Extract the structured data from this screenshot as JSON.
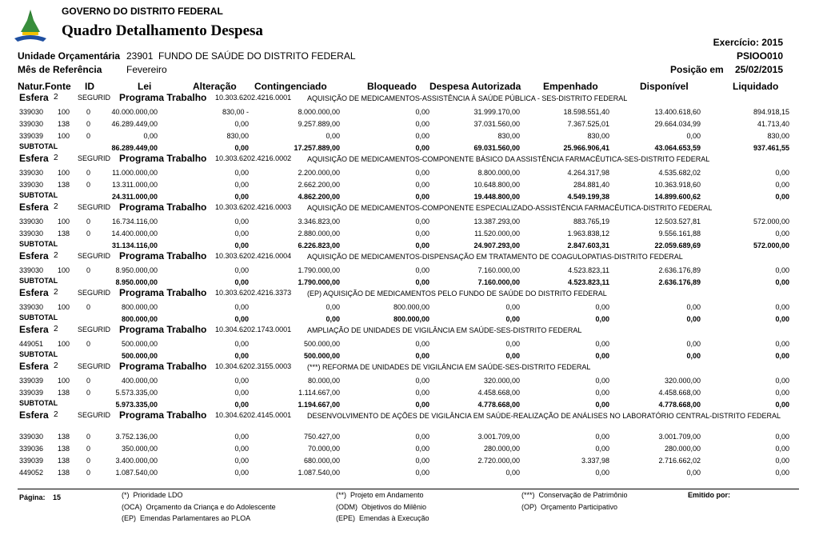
{
  "header": {
    "government": "GOVERNO DO DISTRITO FEDERAL",
    "title": "Quadro Detalhamento Despesa",
    "exercise": "Exercício: 2015",
    "report_code": "PSIOO010",
    "unit_label": "Unidade Orçamentária",
    "unit_value": "23901  FUNDO DE SAÚDE DO DISTRITO FEDERAL",
    "month_label": "Mês de Referência",
    "month_value": "Fevereiro",
    "position_label": "Posição em",
    "position_value": "25/02/2015"
  },
  "columns": [
    "Natur.",
    "Fonte",
    "ID",
    "Lei",
    "Alteração",
    "Contingenciado",
    "Bloqueado",
    "Despesa Autorizada",
    "Empenhado",
    "Disponível",
    "Liquidado"
  ],
  "labels": {
    "esfera": "Esfera",
    "programa": "Programa Trabalho",
    "subtotal": "SUBTOTAL"
  },
  "sections": [
    {
      "esfera": "2",
      "seg": "SEGURID",
      "code": "10.303.6202.4216.0001",
      "description": "AQUISIÇÃO DE MEDICAMENTOS-ASSISTÊNCIA À SAÚDE PÚBLICA - SES-DISTRITO FEDERAL",
      "rows": [
        [
          "339030",
          "100",
          "0",
          "40.000.000,00",
          "830,00 -",
          "8.000.000,00",
          "0,00",
          "31.999.170,00",
          "18.598.551,40",
          "13.400.618,60",
          "894.918,15"
        ],
        [
          "339030",
          "138",
          "0",
          "46.289.449,00",
          "0,00",
          "9.257.889,00",
          "0,00",
          "37.031.560,00",
          "7.367.525,01",
          "29.664.034,99",
          "41.713,40"
        ],
        [
          "339039",
          "100",
          "0",
          "0,00",
          "830,00",
          "0,00",
          "0,00",
          "830,00",
          "830,00",
          "0,00",
          "830,00"
        ]
      ],
      "subtotal": [
        "86.289.449,00",
        "0,00",
        "17.257.889,00",
        "0,00",
        "69.031.560,00",
        "25.966.906,41",
        "43.064.653,59",
        "937.461,55"
      ]
    },
    {
      "esfera": "2",
      "seg": "SEGURID",
      "code": "10.303.6202.4216.0002",
      "description": "AQUISIÇÃO DE MEDICAMENTOS-COMPONENTE BÁSICO DA ASSISTÊNCIA FARMACÊUTICA-SES-DISTRITO FEDERAL",
      "rows": [
        [
          "339030",
          "100",
          "0",
          "11.000.000,00",
          "0,00",
          "2.200.000,00",
          "0,00",
          "8.800.000,00",
          "4.264.317,98",
          "4.535.682,02",
          "0,00"
        ],
        [
          "339030",
          "138",
          "0",
          "13.311.000,00",
          "0,00",
          "2.662.200,00",
          "0,00",
          "10.648.800,00",
          "284.881,40",
          "10.363.918,60",
          "0,00"
        ]
      ],
      "subtotal": [
        "24.311.000,00",
        "0,00",
        "4.862.200,00",
        "0,00",
        "19.448.800,00",
        "4.549.199,38",
        "14.899.600,62",
        "0,00"
      ]
    },
    {
      "esfera": "2",
      "seg": "SEGURID",
      "code": "10.303.6202.4216.0003",
      "description": "AQUISIÇÃO DE MEDICAMENTOS-COMPONENTE ESPECIALIZADO-ASSISTÊNCIA FARMACÊUTICA-DISTRITO FEDERAL",
      "rows": [
        [
          "339030",
          "100",
          "0",
          "16.734.116,00",
          "0,00",
          "3.346.823,00",
          "0,00",
          "13.387.293,00",
          "883.765,19",
          "12.503.527,81",
          "572.000,00"
        ],
        [
          "339030",
          "138",
          "0",
          "14.400.000,00",
          "0,00",
          "2.880.000,00",
          "0,00",
          "11.520.000,00",
          "1.963.838,12",
          "9.556.161,88",
          "0,00"
        ]
      ],
      "subtotal": [
        "31.134.116,00",
        "0,00",
        "6.226.823,00",
        "0,00",
        "24.907.293,00",
        "2.847.603,31",
        "22.059.689,69",
        "572.000,00"
      ]
    },
    {
      "esfera": "2",
      "seg": "SEGURID",
      "code": "10.303.6202.4216.0004",
      "description": "AQUISIÇÃO DE MEDICAMENTOS-DISPENSAÇÃO EM TRATAMENTO DE COAGULOPATIAS-DISTRITO FEDERAL",
      "rows": [
        [
          "339030",
          "100",
          "0",
          "8.950.000,00",
          "0,00",
          "1.790.000,00",
          "0,00",
          "7.160.000,00",
          "4.523.823,11",
          "2.636.176,89",
          "0,00"
        ]
      ],
      "subtotal": [
        "8.950.000,00",
        "0,00",
        "1.790.000,00",
        "0,00",
        "7.160.000,00",
        "4.523.823,11",
        "2.636.176,89",
        "0,00"
      ]
    },
    {
      "esfera": "2",
      "seg": "SEGURID",
      "code": "10.303.6202.4216.3373",
      "description": "(EP) AQUISIÇÃO DE MEDICAMENTOS PELO FUNDO DE SAÚDE DO DISTRITO FEDERAL",
      "rows": [
        [
          "339030",
          "100",
          "0",
          "800.000,00",
          "0,00",
          "0,00",
          "800.000,00",
          "0,00",
          "0,00",
          "0,00",
          "0,00"
        ]
      ],
      "subtotal": [
        "800.000,00",
        "0,00",
        "0,00",
        "800.000,00",
        "0,00",
        "0,00",
        "0,00",
        "0,00"
      ]
    },
    {
      "esfera": "2",
      "seg": "SEGURID",
      "code": "10.304.6202.1743.0001",
      "description": "AMPLIAÇÃO DE UNIDADES DE VIGILÂNCIA EM SAÚDE-SES-DISTRITO FEDERAL",
      "rows": [
        [
          "449051",
          "100",
          "0",
          "500.000,00",
          "0,00",
          "500.000,00",
          "0,00",
          "0,00",
          "0,00",
          "0,00",
          "0,00"
        ]
      ],
      "subtotal": [
        "500.000,00",
        "0,00",
        "500.000,00",
        "0,00",
        "0,00",
        "0,00",
        "0,00",
        "0,00"
      ]
    },
    {
      "esfera": "2",
      "seg": "SEGURID",
      "code": "10.304.6202.3155.0003",
      "description": "(***) REFORMA DE UNIDADES DE VIGILÂNCIA EM SAÚDE-SES-DISTRITO FEDERAL",
      "rows": [
        [
          "339039",
          "100",
          "0",
          "400.000,00",
          "0,00",
          "80.000,00",
          "0,00",
          "320.000,00",
          "0,00",
          "320.000,00",
          "0,00"
        ],
        [
          "339039",
          "138",
          "0",
          "5.573.335,00",
          "0,00",
          "1.114.667,00",
          "0,00",
          "4.458.668,00",
          "0,00",
          "4.458.668,00",
          "0,00"
        ]
      ],
      "subtotal": [
        "5.973.335,00",
        "0,00",
        "1.194.667,00",
        "0,00",
        "4.778.668,00",
        "0,00",
        "4.778.668,00",
        "0,00"
      ]
    },
    {
      "esfera": "2",
      "seg": "SEGURID",
      "code": "10.304.6202.4145.0001",
      "description": "DESENVOLVIMENTO DE AÇÕES DE VIGILÂNCIA EM SAÚDE-REALIZAÇÃO DE ANÁLISES NO LABORATÓRIO CENTRAL-DISTRITO FEDERAL",
      "rows": [
        [
          "339030",
          "138",
          "0",
          "3.752.136,00",
          "0,00",
          "750.427,00",
          "0,00",
          "3.001.709,00",
          "0,00",
          "3.001.709,00",
          "0,00"
        ],
        [
          "339036",
          "138",
          "0",
          "350.000,00",
          "0,00",
          "70.000,00",
          "0,00",
          "280.000,00",
          "0,00",
          "280.000,00",
          "0,00"
        ],
        [
          "339039",
          "138",
          "0",
          "3.400.000,00",
          "0,00",
          "680.000,00",
          "0,00",
          "2.720.000,00",
          "3.337,98",
          "2.716.662,02",
          "0,00"
        ],
        [
          "449052",
          "138",
          "0",
          "1.087.540,00",
          "0,00",
          "1.087.540,00",
          "0,00",
          "0,00",
          "0,00",
          "0,00",
          "0,00"
        ]
      ]
    }
  ],
  "footer": {
    "page_label": "Página:",
    "page_value": "15",
    "issued_by": "Emitido por:",
    "legend": [
      [
        "(*)  Prioridade LDO",
        "(**)  Projeto em Andamento",
        "(***)  Conservação de Patrimônio"
      ],
      [
        "(OCA)  Orçamento da Criança e do Adolescente",
        "(ODM)  Objetivos do Milênio",
        "(OP)  Orçamento Participativo"
      ],
      [
        "(EP)  Emendas Parlamentares ao PLOA",
        "(EPE)  Emendas à Execução"
      ]
    ]
  }
}
